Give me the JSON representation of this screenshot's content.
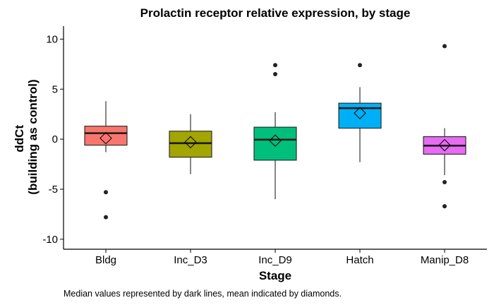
{
  "chart_data": {
    "type": "box",
    "title": "Prolactin receptor relative expression, by stage",
    "xlabel": "Stage",
    "ylabel_lines": [
      "ddCt",
      "(building as control)"
    ],
    "caption": "Median values represented by dark lines, mean indicated by diamonds.",
    "ylim": [
      -11.0,
      11.3
    ],
    "yticks": [
      -10,
      -5,
      0,
      5,
      10
    ],
    "ytick_labels": [
      "-10",
      "-5",
      "0",
      "5",
      "10"
    ],
    "grid": false,
    "legend": "none",
    "categories": [
      "Bldg",
      "Inc_D3",
      "Inc_D9",
      "Hatch",
      "Manip_D8"
    ],
    "colors": [
      "#f8766d",
      "#a3a500",
      "#00bf7d",
      "#00b0f6",
      "#e76bf3"
    ],
    "boxes": [
      {
        "category": "Bldg",
        "q1": -0.6,
        "median": 0.6,
        "q3": 1.3,
        "whisker_low": -1.3,
        "whisker_high": 3.8,
        "mean": 0.1,
        "outliers": [
          -5.3,
          -7.8
        ]
      },
      {
        "category": "Inc_D3",
        "q1": -1.8,
        "median": -0.4,
        "q3": 0.8,
        "whisker_low": -3.5,
        "whisker_high": 2.5,
        "mean": -0.3,
        "outliers": []
      },
      {
        "category": "Inc_D9",
        "q1": -2.1,
        "median": -0.05,
        "q3": 1.2,
        "whisker_low": -6.0,
        "whisker_high": 2.7,
        "mean": -0.15,
        "outliers": [
          6.5,
          7.4
        ]
      },
      {
        "category": "Hatch",
        "q1": 1.1,
        "median": 3.1,
        "q3": 3.6,
        "whisker_low": -2.3,
        "whisker_high": 5.2,
        "mean": 2.6,
        "outliers": [
          7.4
        ]
      },
      {
        "category": "Manip_D8",
        "q1": -1.5,
        "median": -0.65,
        "q3": 0.25,
        "whisker_low": -3.6,
        "whisker_high": 1.1,
        "mean": -0.6,
        "outliers": [
          -4.3,
          -6.7,
          9.3
        ]
      }
    ]
  }
}
